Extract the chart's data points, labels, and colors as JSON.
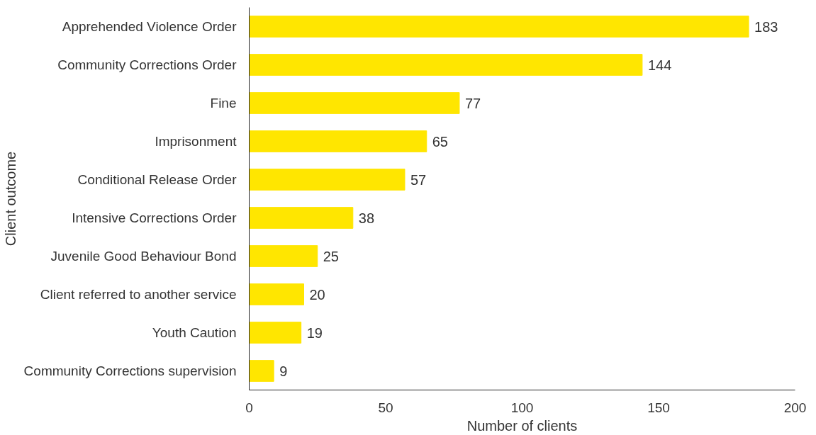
{
  "chart_data": {
    "type": "bar",
    "orientation": "horizontal",
    "xlabel": "Number of clients",
    "ylabel": "Client outcome",
    "categories": [
      "Apprehended Violence Order",
      "Community Corrections Order",
      "Fine",
      "Imprisonment",
      "Conditional Release Order",
      "Intensive Corrections Order",
      "Juvenile Good Behaviour Bond",
      "Client referred to another service",
      "Youth Caution",
      "Community Corrections supervision"
    ],
    "values": [
      183,
      144,
      77,
      65,
      57,
      38,
      25,
      20,
      19,
      9
    ],
    "color": "#ffe600",
    "xlim": [
      0,
      200
    ],
    "xticks": [
      0,
      50,
      100,
      150,
      200
    ],
    "data_labels": true,
    "grid": false
  }
}
